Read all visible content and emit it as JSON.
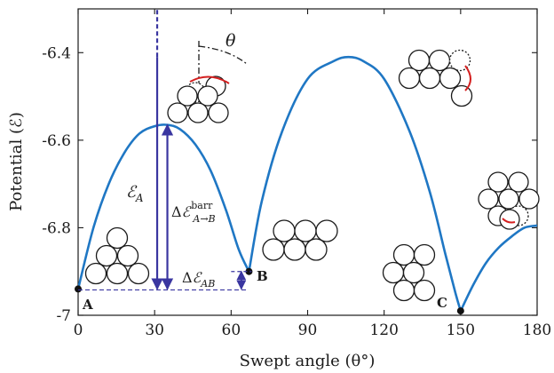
{
  "chart_data": {
    "type": "line",
    "xlabel": "Swept angle (θ°)",
    "ylabel": "Potential (ℰ)",
    "xlim": [
      0,
      180
    ],
    "ylim": [
      -7.0,
      -6.3
    ],
    "x_ticks": [
      0,
      30,
      60,
      90,
      120,
      150,
      180
    ],
    "y_ticks": [
      -6.4,
      -6.6,
      -6.8,
      -7.0
    ],
    "x_tick_labels": [
      "0",
      "30",
      "60",
      "90",
      "120",
      "150",
      "180"
    ],
    "y_tick_labels": [
      "-6.4",
      "-6.6",
      "-6.8",
      "-7"
    ],
    "grid": false,
    "series": [
      {
        "color": "#1f77c4",
        "segments": [
          {
            "x": [
              0,
              6,
              12,
              18,
              24,
              30,
              35,
              40,
              46,
              52,
              58,
              63,
              67
            ],
            "y": [
              -6.94,
              -6.8,
              -6.7,
              -6.63,
              -6.585,
              -6.568,
              -6.565,
              -6.575,
              -6.61,
              -6.67,
              -6.76,
              -6.85,
              -6.9
            ]
          },
          {
            "x": [
              67,
              72,
              80,
              90,
              100,
              106,
              112,
              120,
              130,
              138,
              144,
              148,
              150
            ],
            "y": [
              -6.9,
              -6.74,
              -6.58,
              -6.46,
              -6.42,
              -6.41,
              -6.42,
              -6.46,
              -6.58,
              -6.72,
              -6.86,
              -6.95,
              -6.99
            ]
          },
          {
            "x": [
              150,
              155,
              160,
              165,
              170,
              175,
              180
            ],
            "y": [
              -6.99,
              -6.93,
              -6.88,
              -6.845,
              -6.82,
              -6.8,
              -6.795
            ]
          }
        ]
      }
    ],
    "points": [
      {
        "label": "A",
        "x": 0,
        "y": -6.94
      },
      {
        "label": "B",
        "x": 67,
        "y": -6.9
      },
      {
        "label": "C",
        "x": 150,
        "y": -6.99
      }
    ],
    "annotations": {
      "theta_symbol": "θ",
      "eps_a": {
        "main": "ℰ",
        "sub": "A"
      },
      "barrier": {
        "delta": "Δ",
        "main": "ℰ",
        "sup": "barr",
        "sub": "A→B"
      },
      "delta_ab": {
        "delta": "Δ",
        "main": "ℰ",
        "sub": "AB"
      },
      "arrow_eps_a": {
        "x": 31,
        "y_from": -6.94,
        "y_to": -6.41
      },
      "arrow_barrier": {
        "x": 35,
        "y_from": -6.94,
        "y_to": -6.565
      },
      "arrow_delta_ab": {
        "x": 64,
        "y_from": -6.94,
        "y_to": -6.9
      }
    }
  }
}
